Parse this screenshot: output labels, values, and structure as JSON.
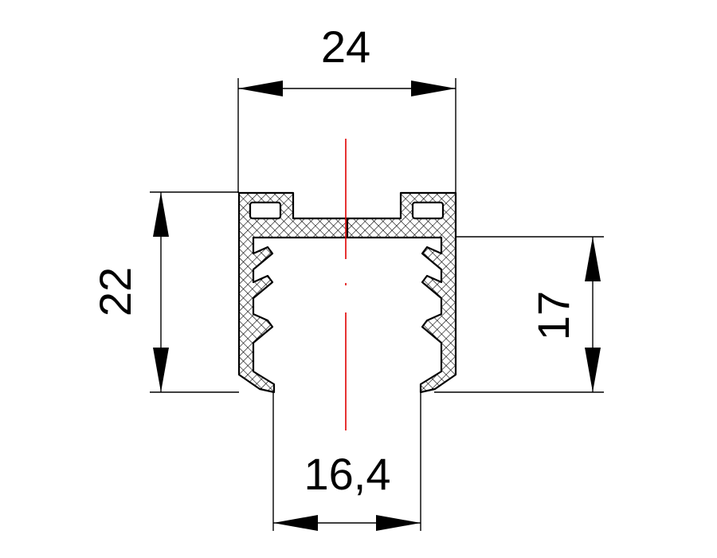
{
  "dimensions": {
    "top_width": "24",
    "left_height": "22",
    "right_height": "17",
    "bottom_opening": "16,4"
  },
  "colors": {
    "outline": "#000000",
    "centerline": "#e00000",
    "background": "#ffffff"
  }
}
